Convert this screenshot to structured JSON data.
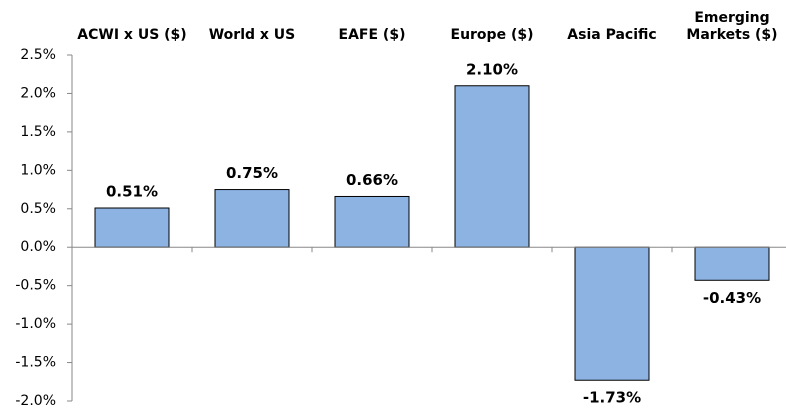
{
  "chart_data": {
    "type": "bar",
    "categories": [
      "ACWI x US ($)",
      "World x US",
      "EAFE ($)",
      "Europe ($)",
      "Asia Pacific",
      "Emerging Markets ($)"
    ],
    "values": [
      0.51,
      0.75,
      0.66,
      2.1,
      -1.73,
      -0.43
    ],
    "value_labels": [
      "0.51%",
      "0.75%",
      "0.66%",
      "2.10%",
      "-1.73%",
      "-0.43%"
    ],
    "color": "#8db3e2",
    "ylim": [
      -2.0,
      2.5
    ],
    "yticks": [
      {
        "value": -2.0,
        "label": "-2.0%"
      },
      {
        "value": -1.5,
        "label": "-1.5%"
      },
      {
        "value": -1.0,
        "label": "-1.0%"
      },
      {
        "value": -0.5,
        "label": "-0.5%"
      },
      {
        "value": 0.0,
        "label": "0.0%"
      },
      {
        "value": 0.5,
        "label": "0.5%"
      },
      {
        "value": 1.0,
        "label": "1.0%"
      },
      {
        "value": 1.5,
        "label": "1.5%"
      },
      {
        "value": 2.0,
        "label": "2.0%"
      },
      {
        "value": 2.5,
        "label": "2.5%"
      }
    ]
  }
}
